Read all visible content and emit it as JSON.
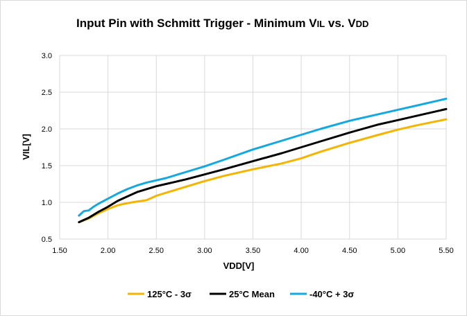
{
  "chart_data": {
    "type": "line",
    "title_parts": {
      "prefix": "Input Pin with Schmitt Trigger - Minimum V",
      "sub1": "IL",
      "middle": " vs. V",
      "sub2": "DD"
    },
    "xlabel": "VDD[V]",
    "ylabel": "VIL[V]",
    "xlim": [
      1.5,
      5.5
    ],
    "ylim": [
      0.5,
      3.0
    ],
    "x_ticks": [
      "1.50",
      "2.00",
      "2.50",
      "3.00",
      "3.50",
      "4.00",
      "4.50",
      "5.00",
      "5.50"
    ],
    "y_ticks": [
      "0.5",
      "1.0",
      "1.5",
      "2.0",
      "2.5",
      "3.0"
    ],
    "grid": true,
    "legend_position": "bottom",
    "series": [
      {
        "name": "125°C - 3σ",
        "color": "#f5b400",
        "x": [
          1.7,
          1.8,
          1.9,
          2.0,
          2.1,
          2.2,
          2.3,
          2.4,
          2.5,
          2.6,
          2.8,
          3.0,
          3.2,
          3.5,
          3.8,
          4.0,
          4.2,
          4.5,
          4.8,
          5.0,
          5.2,
          5.5
        ],
        "y": [
          0.73,
          0.78,
          0.85,
          0.91,
          0.96,
          0.99,
          1.01,
          1.03,
          1.09,
          1.13,
          1.21,
          1.29,
          1.36,
          1.45,
          1.53,
          1.6,
          1.69,
          1.81,
          1.92,
          1.99,
          2.05,
          2.13
        ]
      },
      {
        "name": "25°C Mean",
        "color": "#000000",
        "x": [
          1.7,
          1.8,
          1.9,
          2.0,
          2.1,
          2.2,
          2.3,
          2.4,
          2.5,
          2.6,
          2.8,
          3.0,
          3.2,
          3.5,
          3.8,
          4.0,
          4.2,
          4.5,
          4.8,
          5.0,
          5.2,
          5.5
        ],
        "y": [
          0.73,
          0.79,
          0.87,
          0.94,
          1.02,
          1.08,
          1.14,
          1.18,
          1.22,
          1.25,
          1.31,
          1.38,
          1.45,
          1.56,
          1.67,
          1.75,
          1.83,
          1.95,
          2.06,
          2.12,
          2.18,
          2.27
        ]
      },
      {
        "name": "-40°C + 3σ",
        "color": "#12a8e0",
        "x": [
          1.7,
          1.75,
          1.8,
          1.85,
          1.9,
          2.0,
          2.1,
          2.2,
          2.3,
          2.4,
          2.5,
          2.6,
          2.8,
          3.0,
          3.2,
          3.5,
          3.8,
          4.0,
          4.2,
          4.5,
          4.8,
          5.0,
          5.2,
          5.5
        ],
        "y": [
          0.82,
          0.88,
          0.89,
          0.94,
          0.98,
          1.05,
          1.12,
          1.18,
          1.23,
          1.27,
          1.3,
          1.33,
          1.41,
          1.49,
          1.58,
          1.72,
          1.84,
          1.92,
          2.0,
          2.11,
          2.2,
          2.26,
          2.32,
          2.41
        ]
      }
    ]
  }
}
